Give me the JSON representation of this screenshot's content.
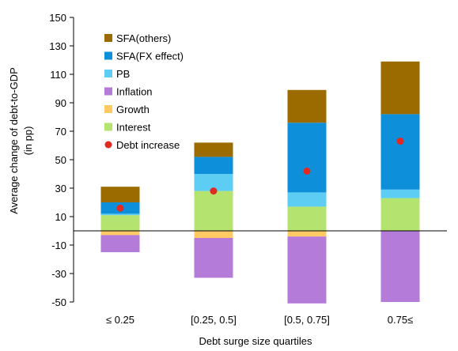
{
  "chart_data": {
    "type": "bar",
    "stacked": true,
    "categories": [
      "≤ 0.25",
      "[0.25, 0.5]",
      "[0.5, 0.75]",
      "0.75≤"
    ],
    "xlabel": "Debt surge size quartiles",
    "ylabel_lines": [
      "Average change of debt-to-GDP",
      "(in pp)"
    ],
    "ylim": [
      -50,
      150
    ],
    "yticks": [
      150,
      130,
      110,
      90,
      70,
      50,
      30,
      10,
      -10,
      -30,
      -50
    ],
    "grid": false,
    "legend_position": "top-left",
    "series": [
      {
        "name": "Interest",
        "color": "#b4e36f",
        "values": [
          11,
          28,
          17,
          23
        ]
      },
      {
        "name": "PB",
        "color": "#5ecdf3",
        "values": [
          1,
          12,
          10,
          6
        ]
      },
      {
        "name": "SFA(FX effect)",
        "color": "#0e8fda",
        "values": [
          8,
          12,
          49,
          53
        ]
      },
      {
        "name": "SFA(others)",
        "color": "#9b6b00",
        "values": [
          11,
          10,
          23,
          37
        ]
      },
      {
        "name": "Growth",
        "color": "#ffc963",
        "values": [
          -3,
          -5,
          -4,
          0
        ]
      },
      {
        "name": "Inflation",
        "color": "#b57bd9",
        "values": [
          -12,
          -28,
          -47,
          -50
        ]
      }
    ],
    "debt_increase": {
      "name": "Debt increase",
      "color": "#e02a22",
      "values": [
        16,
        28,
        42,
        63
      ]
    },
    "legend_order": [
      "SFA(others)",
      "SFA(FX effect)",
      "PB",
      "Inflation",
      "Growth",
      "Interest",
      "Debt increase"
    ]
  }
}
